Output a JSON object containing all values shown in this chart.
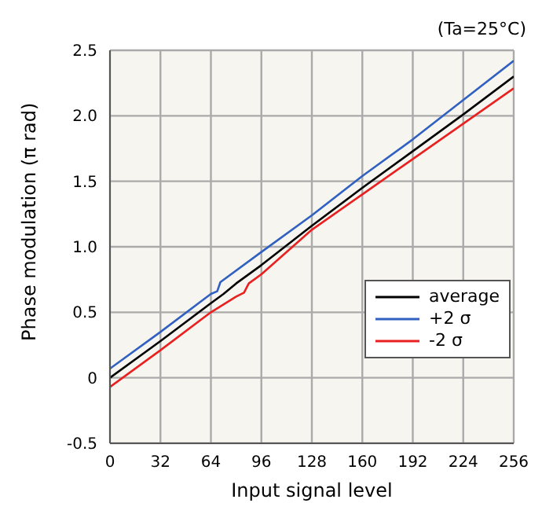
{
  "chart_data": {
    "type": "line",
    "xlabel": "Input signal level",
    "ylabel": "Phase modulation (π rad)",
    "annotations": [
      "(Ta=25°C)"
    ],
    "xlim": [
      0,
      256
    ],
    "xticks": [
      0,
      32,
      64,
      96,
      128,
      160,
      192,
      224,
      256
    ],
    "ylim": [
      -0.5,
      2.5
    ],
    "yticks": [
      -0.5,
      0,
      0.5,
      {
        "value": 1,
        "label": "1.0"
      },
      1.5,
      {
        "value": 2,
        "label": "2.0"
      },
      2.5
    ],
    "grid": true,
    "legend": "bottom right",
    "marker": "none",
    "line_style": "solid",
    "series": [
      {
        "name": "average",
        "color": "#000000",
        "x": [
          0,
          32,
          64,
          72,
          80,
          96,
          128,
          160,
          192,
          224,
          256
        ],
        "values": [
          0,
          0.28,
          0.57,
          0.64,
          0.72,
          0.86,
          1.16,
          1.45,
          1.73,
          2.01,
          2.3
        ]
      },
      {
        "name": "+2 σ",
        "color": "#3060c0",
        "x": [
          0,
          32,
          64,
          68,
          70,
          96,
          128,
          160,
          192,
          224,
          256
        ],
        "values": [
          0.07,
          0.35,
          0.64,
          0.66,
          0.73,
          0.96,
          1.24,
          1.54,
          1.82,
          2.12,
          2.42
        ]
      },
      {
        "name": "-2 σ",
        "color": "#e82020",
        "x": [
          0,
          32,
          64,
          80,
          85,
          88,
          96,
          128,
          160,
          192,
          224,
          256
        ],
        "values": [
          -0.07,
          0.21,
          0.5,
          0.62,
          0.65,
          0.72,
          0.79,
          1.13,
          1.4,
          1.67,
          1.94,
          2.21
        ]
      }
    ]
  }
}
